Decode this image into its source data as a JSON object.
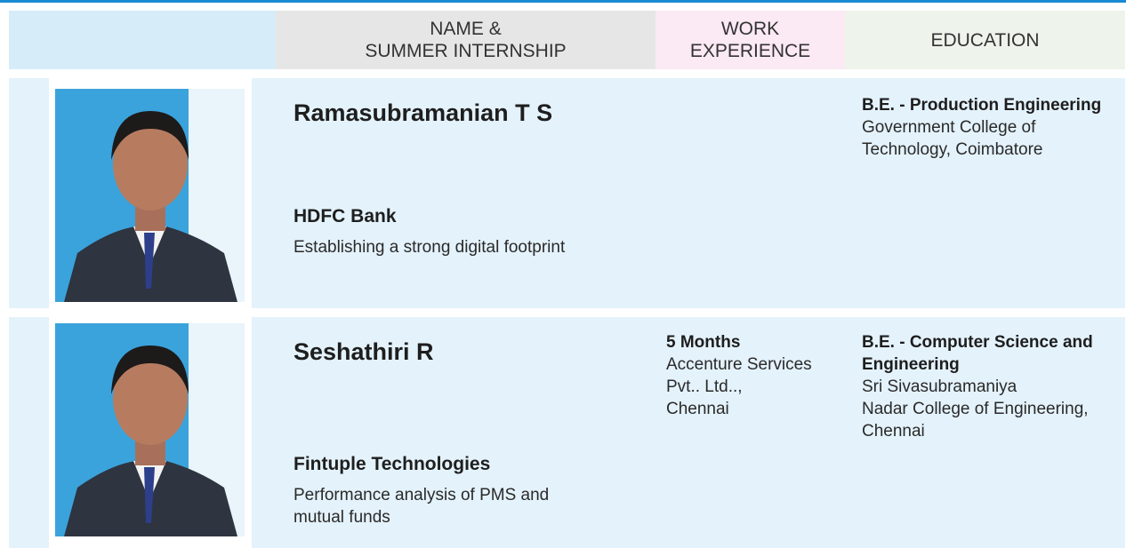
{
  "header": {
    "name_lines": [
      "NAME &",
      "SUMMER INTERNSHIP"
    ],
    "work_lines": [
      "WORK",
      "EXPERIENCE"
    ],
    "education": "EDUCATION"
  },
  "students": [
    {
      "name": "Ramasubramanian T S",
      "company": "HDFC Bank",
      "project_lines": [
        "Establishing a strong digital footprint"
      ],
      "degree_lines": [
        "B.E. - Production Engineering"
      ],
      "institution_lines": [
        "Government College of",
        "Technology, Coimbatore"
      ]
    },
    {
      "name": "Seshathiri R",
      "company": "Fintuple Technologies",
      "project_lines": [
        "Performance analysis of PMS and",
        "mutual funds"
      ],
      "work_duration": "5 Months",
      "work_lines": [
        "Accenture Services",
        "Pvt.. Ltd..,",
        "Chennai"
      ],
      "degree_lines": [
        "B.E. - Computer Science and",
        "Engineering"
      ],
      "institution_lines": [
        "Sri Sivasubramaniya",
        "Nadar College of Engineering,",
        "Chennai"
      ]
    }
  ]
}
